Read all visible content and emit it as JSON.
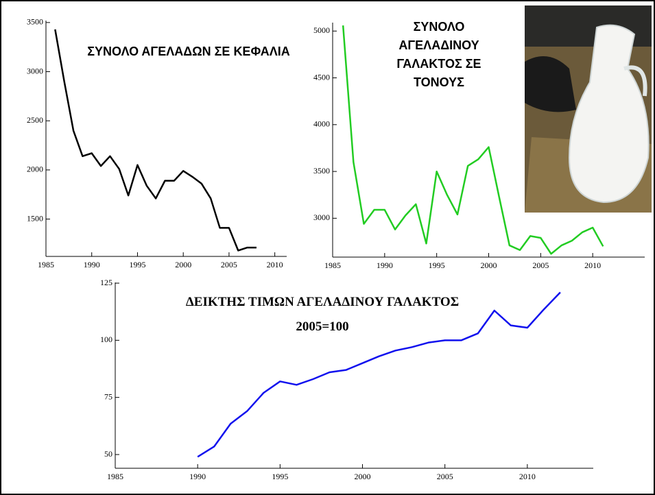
{
  "chart_data": [
    {
      "type": "line",
      "title": "ΣΥΝΟΛΟ ΑΓΕΛΑΔΩΝ ΣΕ ΚΕΦΑΛΙΑ",
      "x": [
        1986,
        1987,
        1988,
        1989,
        1990,
        1991,
        1992,
        1993,
        1994,
        1995,
        1996,
        1997,
        1998,
        1999,
        2000,
        2001,
        2002,
        2003,
        2004,
        2005,
        2006,
        2007,
        2008
      ],
      "series": [
        {
          "color": "#000000",
          "values": [
            3430,
            2900,
            2400,
            2140,
            2170,
            2040,
            2140,
            2010,
            1740,
            2050,
            1840,
            1710,
            1890,
            1890,
            1990,
            1930,
            1860,
            1710,
            1410,
            1410,
            1180,
            1210,
            1210
          ]
        }
      ],
      "xlim": [
        1985,
        2011.3
      ],
      "ylim": [
        1120,
        3520
      ],
      "xticks": [
        1985,
        1990,
        1995,
        2000,
        2005,
        2010
      ],
      "yticks": [
        1500,
        2000,
        2500,
        3000,
        3500
      ]
    },
    {
      "type": "line",
      "title": "ΣΥΝΟΛΟ ΑΓΕΛΑΔΙΝΟΥ ΓΑΛΑΚΤΟΣ ΣΕ ΤΟΝΟΥΣ",
      "x": [
        1986,
        1987,
        1988,
        1989,
        1990,
        1991,
        1992,
        1993,
        1994,
        1995,
        1996,
        1997,
        1998,
        1999,
        2000,
        2001,
        2002,
        2003,
        2004,
        2005,
        2006,
        2007,
        2008,
        2009,
        2010,
        2011
      ],
      "series": [
        {
          "color": "#22cc22",
          "values": [
            5060,
            3600,
            2940,
            3090,
            3090,
            2880,
            3030,
            3150,
            2730,
            3500,
            3250,
            3040,
            3560,
            3630,
            3760,
            3230,
            2710,
            2660,
            2810,
            2790,
            2620,
            2710,
            2760,
            2850,
            2900,
            2700
          ]
        }
      ],
      "xlim": [
        1985,
        2015
      ],
      "ylim": [
        2585,
        5090
      ],
      "xticks": [
        1985,
        1990,
        1995,
        2000,
        2005,
        2010
      ],
      "yticks": [
        3000,
        3500,
        4000,
        4500,
        5000
      ]
    },
    {
      "type": "line",
      "title": "ΔΕΙΚΤΗΣ ΤΙΜΩΝ ΑΓΕΛΑΔΙΝΟΥ ΓΑΛΑΚΤΟΣ",
      "subtitle": "2005=100",
      "x": [
        1990,
        1991,
        1992,
        1993,
        1994,
        1995,
        1996,
        1997,
        1998,
        1999,
        2000,
        2001,
        2002,
        2003,
        2004,
        2005,
        2006,
        2007,
        2008,
        2009,
        2010,
        2011,
        2012
      ],
      "series": [
        {
          "color": "#1010ee",
          "values": [
            49,
            53.5,
            63.5,
            69,
            77,
            82,
            80.5,
            83,
            86,
            87,
            90,
            93,
            95.5,
            97,
            99,
            100,
            100,
            103,
            113,
            106.5,
            105.5,
            113.5,
            121
          ]
        }
      ],
      "xlim": [
        1985,
        2014
      ],
      "ylim": [
        44,
        125.3
      ],
      "xticks": [
        1985,
        1990,
        1995,
        2000,
        2005,
        2010
      ],
      "yticks": [
        50,
        75,
        100,
        125
      ]
    }
  ]
}
